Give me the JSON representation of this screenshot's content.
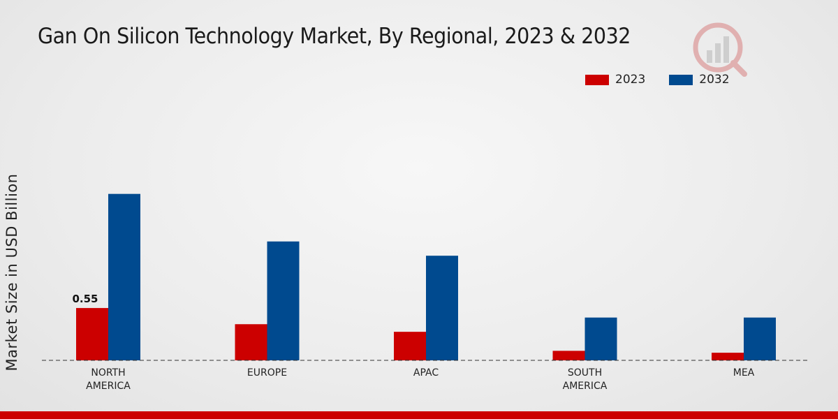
{
  "chart_data": {
    "type": "bar",
    "title": "Gan On Silicon Technology Market, By Regional, 2023 & 2032",
    "xlabel": "",
    "ylabel": "Market Size in USD Billion",
    "ylim": [
      0,
      2.1
    ],
    "categories": [
      "NORTH\nAMERICA",
      "EUROPE",
      "APAC",
      "SOUTH\nAMERICA",
      "MEA"
    ],
    "series": [
      {
        "name": "2023",
        "color": "#cc0000",
        "values": [
          0.55,
          0.38,
          0.3,
          0.1,
          0.08
        ]
      },
      {
        "name": "2032",
        "color": "#004a8f",
        "values": [
          1.75,
          1.25,
          1.1,
          0.45,
          0.45
        ]
      }
    ],
    "data_labels": [
      {
        "series": 0,
        "index": 0,
        "text": "0.55"
      }
    ],
    "legend_position": "top-right",
    "grid": false
  },
  "branding": {
    "logo_icon": "market-research-logo-icon",
    "footer_color": "#cc0000"
  }
}
